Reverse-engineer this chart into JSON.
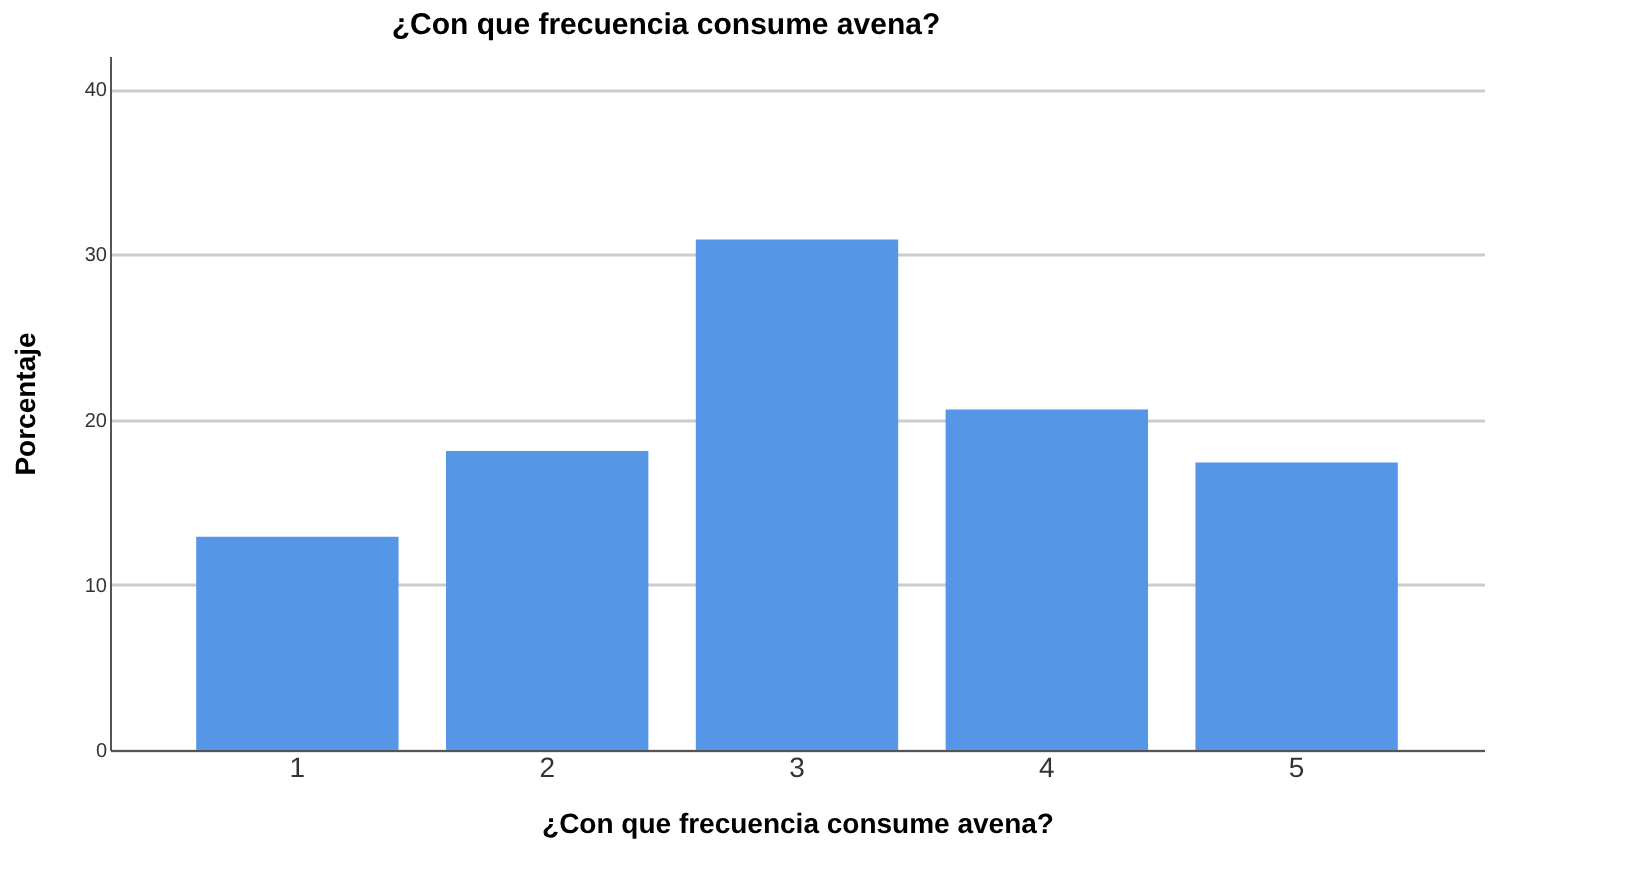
{
  "chart_data": {
    "type": "bar",
    "title": "¿Con que frecuencia consume avena?",
    "xlabel": "¿Con que frecuencia consume avena?",
    "ylabel": "Porcentaje",
    "categories": [
      "1",
      "2",
      "3",
      "4",
      "5"
    ],
    "values": [
      12.9,
      18.1,
      30.9,
      20.6,
      17.4
    ],
    "color": "#5596e6",
    "ylim": [
      0,
      42
    ],
    "yticks": [
      0,
      10,
      20,
      30,
      40
    ],
    "grid": "y"
  }
}
